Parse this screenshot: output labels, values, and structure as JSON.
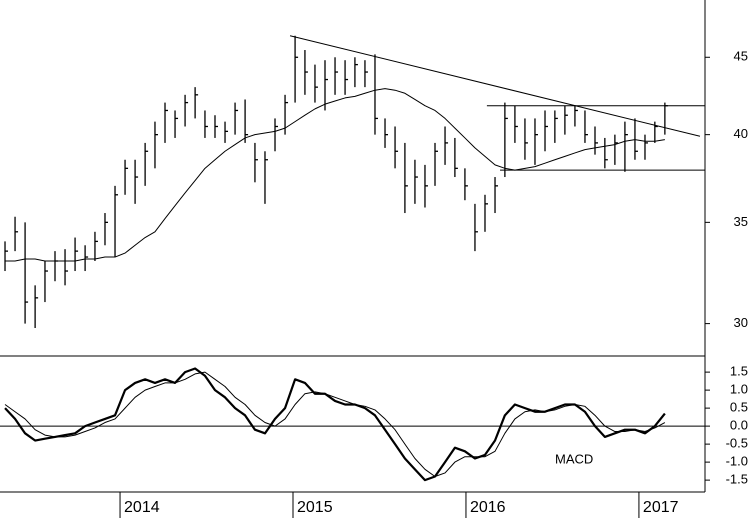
{
  "chart_data": {
    "type": "ohlc",
    "log_scale": true,
    "color": "#000000",
    "x": [
      2013.335,
      2013.393,
      2013.451,
      2013.509,
      2013.566,
      2013.624,
      2013.682,
      2013.74,
      2013.798,
      2013.855,
      2013.913,
      2013.971,
      2014.029,
      2014.087,
      2014.145,
      2014.202,
      2014.26,
      2014.318,
      2014.376,
      2014.434,
      2014.491,
      2014.549,
      2014.607,
      2014.665,
      2014.723,
      2014.78,
      2014.838,
      2014.896,
      2014.954,
      2015.012,
      2015.069,
      2015.127,
      2015.185,
      2015.243,
      2015.301,
      2015.358,
      2015.416,
      2015.474,
      2015.532,
      2015.59,
      2015.647,
      2015.705,
      2015.763,
      2015.821,
      2015.879,
      2015.936,
      2015.994,
      2016.052,
      2016.11,
      2016.168,
      2016.225,
      2016.283,
      2016.341,
      2016.399,
      2016.457,
      2016.514,
      2016.572,
      2016.63,
      2016.688,
      2016.746,
      2016.803,
      2016.861,
      2016.919,
      2016.977,
      2017.035,
      2017.092,
      2017.15
    ],
    "high": [
      34.0,
      35.3,
      35.0,
      31.8,
      33.0,
      33.5,
      33.6,
      34.2,
      33.8,
      34.5,
      35.5,
      37.0,
      38.5,
      38.5,
      39.5,
      40.8,
      42.0,
      41.5,
      42.5,
      43.0,
      41.5,
      41.2,
      40.8,
      42.0,
      42.2,
      39.5,
      39.0,
      41.0,
      42.5,
      46.5,
      45.5,
      44.5,
      44.8,
      45.0,
      44.8,
      45.0,
      44.8,
      45.2,
      41.0,
      40.5,
      39.5,
      38.5,
      38.2,
      39.5,
      40.5,
      39.8,
      38.0,
      36.0,
      36.5,
      37.5,
      42.0,
      41.8,
      41.0,
      41.0,
      41.5,
      41.5,
      41.8,
      41.8,
      41.5,
      40.5,
      39.8,
      40.0,
      40.8,
      41.0,
      40.0,
      40.8,
      42.0
    ],
    "low": [
      32.5,
      33.5,
      30.0,
      29.8,
      31.0,
      32.0,
      31.8,
      32.5,
      32.5,
      33.0,
      33.8,
      33.2,
      36.5,
      36.0,
      37.0,
      38.0,
      39.5,
      39.8,
      40.5,
      41.0,
      39.8,
      39.8,
      39.5,
      40.0,
      39.5,
      37.2,
      36.0,
      39.0,
      40.0,
      42.0,
      42.5,
      42.0,
      41.5,
      42.5,
      42.5,
      43.0,
      43.0,
      40.0,
      39.2,
      38.0,
      35.5,
      36.0,
      35.8,
      37.0,
      38.2,
      37.5,
      36.2,
      33.5,
      34.5,
      35.5,
      37.5,
      39.5,
      38.5,
      38.2,
      39.0,
      39.5,
      40.0,
      40.5,
      39.5,
      38.8,
      38.0,
      38.2,
      37.8,
      38.5,
      38.5,
      39.5,
      40.0
    ],
    "close": [
      33.5,
      34.5,
      31.0,
      31.2,
      32.5,
      33.0,
      32.5,
      33.5,
      33.2,
      34.0,
      35.0,
      36.5,
      38.0,
      37.5,
      39.0,
      40.0,
      41.5,
      41.0,
      42.0,
      42.5,
      40.5,
      40.5,
      40.2,
      41.5,
      40.0,
      38.5,
      38.5,
      40.5,
      42.0,
      45.0,
      44.0,
      43.0,
      43.5,
      44.0,
      43.5,
      44.5,
      44.0,
      41.0,
      40.0,
      39.0,
      37.0,
      37.5,
      37.0,
      39.0,
      39.5,
      38.0,
      37.0,
      34.5,
      36.0,
      37.0,
      41.0,
      40.5,
      39.5,
      40.0,
      40.5,
      41.0,
      41.2,
      41.5,
      40.0,
      39.5,
      38.5,
      39.5,
      40.0,
      39.0,
      39.5,
      40.5,
      41.8
    ],
    "ma": {
      "color": "#000000",
      "values": [
        33.0,
        33.0,
        33.1,
        33.1,
        33.0,
        33.0,
        33.0,
        33.0,
        33.1,
        33.1,
        33.2,
        33.2,
        33.4,
        33.8,
        34.2,
        34.5,
        35.2,
        35.9,
        36.6,
        37.3,
        38.0,
        38.5,
        39.0,
        39.4,
        39.8,
        40.0,
        40.1,
        40.2,
        40.4,
        40.8,
        41.2,
        41.6,
        41.9,
        42.1,
        42.3,
        42.4,
        42.6,
        42.8,
        42.9,
        42.8,
        42.6,
        42.2,
        41.8,
        41.5,
        41.0,
        40.4,
        39.8,
        39.2,
        38.7,
        38.2,
        38.0,
        37.9,
        38.0,
        38.1,
        38.3,
        38.5,
        38.7,
        38.9,
        39.1,
        39.2,
        39.3,
        39.4,
        39.6,
        39.7,
        39.6,
        39.6,
        39.7
      ]
    },
    "lines": [
      {
        "x": [
          2014.983,
          2017.353
        ],
        "y": [
          46.5,
          39.9
        ]
      },
      {
        "x": [
          2016.121,
          2017.382
        ],
        "y": [
          41.8,
          41.8
        ]
      },
      {
        "x": [
          2016.197,
          2017.382
        ],
        "y": [
          37.9,
          37.9
        ]
      }
    ],
    "xlim": [
      2013.306,
      2017.382
    ],
    "xticks": [
      2014,
      2015,
      2016,
      2017
    ],
    "ylim": [
      28.6,
      49.1
    ],
    "yticks": [
      30,
      35,
      40,
      45
    ],
    "indicator": {
      "type": "line",
      "annotation": "MACD",
      "ylim": [
        -1.83,
        1.92
      ],
      "yticks": [
        1.5,
        {
          "value": 1,
          "label": "1.0"
        },
        0.5,
        {
          "value": 0,
          "label": "0.0"
        },
        -0.5,
        {
          "value": -1,
          "label": "-1.0"
        },
        -1.5
      ],
      "series": [
        {
          "color": "#000000",
          "width": 2.2,
          "values": [
            0.5,
            0.2,
            -0.2,
            -0.4,
            -0.35,
            -0.3,
            -0.25,
            -0.2,
            0,
            0.1,
            0.2,
            0.3,
            1.0,
            1.2,
            1.3,
            1.2,
            1.3,
            1.2,
            1.5,
            1.6,
            1.4,
            1.0,
            0.8,
            0.5,
            0.3,
            -0.1,
            -0.2,
            0.2,
            0.5,
            1.3,
            1.2,
            0.9,
            0.9,
            0.7,
            0.6,
            0.6,
            0.5,
            0.3,
            -0.1,
            -0.5,
            -0.9,
            -1.2,
            -1.5,
            -1.4,
            -1.0,
            -0.6,
            -0.7,
            -0.9,
            -0.8,
            -0.4,
            0.3,
            0.6,
            0.5,
            0.4,
            0.4,
            0.5,
            0.6,
            0.6,
            0.4,
            0.0,
            -0.3,
            -0.2,
            -0.1,
            -0.1,
            -0.2,
            0.0,
            0.35
          ]
        },
        {
          "color": "#000000",
          "width": 1,
          "values": [
            0.6,
            0.4,
            0.2,
            -0.1,
            -0.25,
            -0.3,
            -0.3,
            -0.25,
            -0.15,
            -0.05,
            0.1,
            0.2,
            0.5,
            0.8,
            1.0,
            1.1,
            1.2,
            1.2,
            1.3,
            1.45,
            1.5,
            1.3,
            1.1,
            0.8,
            0.6,
            0.3,
            0.1,
            0.0,
            0.2,
            0.6,
            0.9,
            0.95,
            0.9,
            0.8,
            0.7,
            0.6,
            0.55,
            0.45,
            0.2,
            -0.1,
            -0.5,
            -0.9,
            -1.2,
            -1.4,
            -1.3,
            -1.0,
            -0.85,
            -0.85,
            -0.85,
            -0.7,
            -0.2,
            0.2,
            0.4,
            0.45,
            0.4,
            0.45,
            0.55,
            0.6,
            0.55,
            0.3,
            0.0,
            -0.15,
            -0.15,
            -0.1,
            -0.15,
            -0.05,
            0.1
          ]
        }
      ]
    }
  }
}
